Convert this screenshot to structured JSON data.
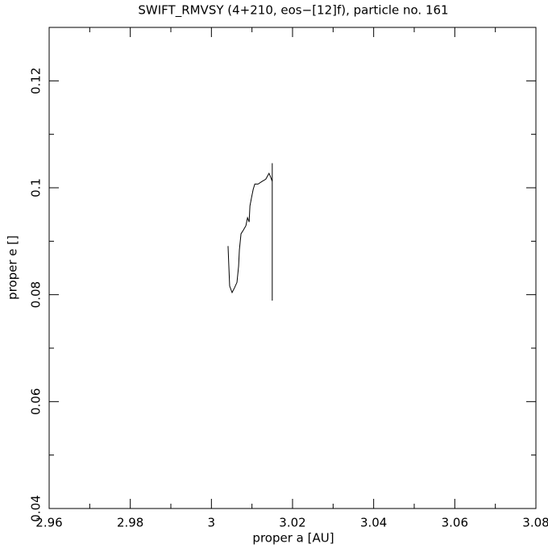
{
  "chart_data": {
    "type": "line",
    "title": "SWIFT_RMVSY (4+210, eos−[12]f), particle no. 161",
    "x_label": "proper a [AU]",
    "y_label": "proper e []",
    "xlim": [
      2.96,
      3.08
    ],
    "ylim": [
      0.04,
      0.13
    ],
    "xticks": [
      2.96,
      2.98,
      3,
      3.02,
      3.04,
      3.06,
      3.08
    ],
    "yticks": [
      0.04,
      0.06,
      0.08,
      0.1,
      0.12
    ],
    "xticks_minor": [
      2.97,
      2.99,
      3.01,
      3.03,
      3.05,
      3.07
    ],
    "yticks_minor": [
      0.05,
      0.07,
      0.09,
      0.11
    ],
    "series": [
      {
        "color": "#000000",
        "x": [
          3.0041,
          3.0043,
          3.0045,
          3.0051,
          3.0057,
          3.0063,
          3.0067,
          3.0069,
          3.0073,
          3.0079,
          3.0085,
          3.0089,
          3.0093,
          3.0095,
          3.0099,
          3.0103,
          3.0107,
          3.0115,
          3.0125,
          3.0134,
          3.0142,
          3.0146,
          3.015,
          null,
          3.015,
          3.015
        ],
        "values": [
          0.0891,
          0.0853,
          0.0816,
          0.0804,
          0.0813,
          0.0823,
          0.0853,
          0.0884,
          0.0914,
          0.0921,
          0.0929,
          0.0944,
          0.0936,
          0.0966,
          0.0982,
          0.0997,
          0.1007,
          0.1007,
          0.1012,
          0.1016,
          0.1027,
          0.102,
          0.1012,
          null,
          0.1046,
          0.0789
        ]
      }
    ]
  }
}
